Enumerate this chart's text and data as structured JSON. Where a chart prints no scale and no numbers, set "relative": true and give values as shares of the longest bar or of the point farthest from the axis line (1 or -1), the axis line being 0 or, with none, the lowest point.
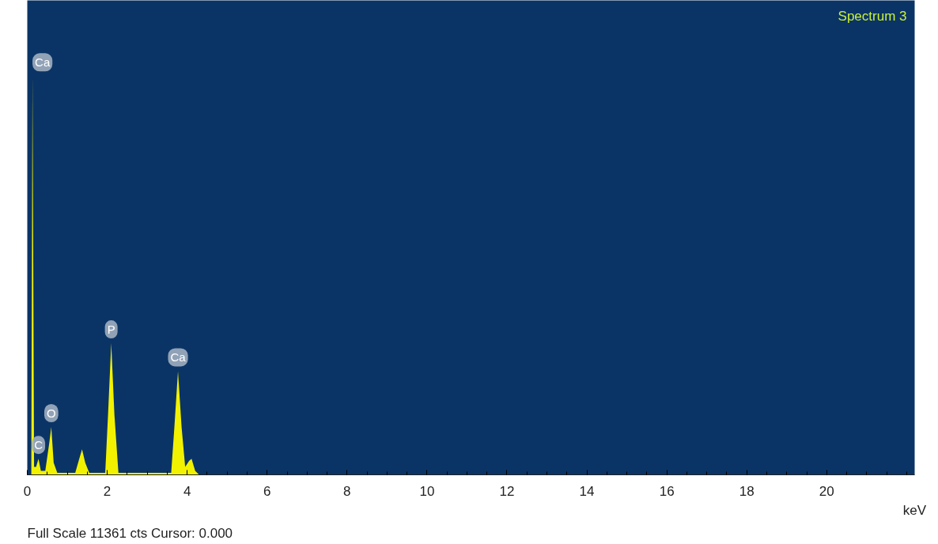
{
  "chart_data": {
    "type": "area",
    "title": "Spectrum 3",
    "xlabel": "keV",
    "relative": true,
    "x": [
      0.0,
      0.1,
      0.13,
      0.17,
      0.22,
      0.28,
      0.34,
      0.45,
      0.55,
      0.6,
      0.66,
      0.75,
      1.2,
      1.3,
      1.37,
      1.45,
      1.55,
      1.95,
      2.02,
      2.1,
      2.18,
      2.28,
      3.6,
      3.68,
      3.77,
      3.86,
      3.95,
      4.05,
      4.11,
      4.2,
      4.3,
      22.2
    ],
    "series": [
      {
        "color": "#f2f200",
        "values": [
          0,
          0,
          1,
          0.02,
          0.02,
          0.04,
          0.01,
          0.01,
          0.08,
          0.12,
          0.03,
          0.005,
          0.005,
          0.04,
          0.064,
          0.03,
          0.005,
          0.005,
          0.15,
          0.33,
          0.15,
          0.005,
          0.005,
          0.12,
          0.26,
          0.12,
          0.02,
          0.035,
          0.04,
          0.01,
          0,
          0
        ]
      }
    ],
    "xlim": [
      0,
      22.2
    ],
    "xticks": [
      0,
      2,
      4,
      6,
      8,
      10,
      12,
      14,
      16,
      18,
      20
    ],
    "annotations": [
      {
        "text": "Ca",
        "x": 0.13,
        "y": 1
      },
      {
        "text": "C",
        "x": 0.28,
        "y": 0.04
      },
      {
        "text": "O",
        "x": 0.6,
        "y": 0.12
      },
      {
        "text": "P",
        "x": 2.1,
        "y": 0.33
      },
      {
        "text": "Ca",
        "x": 3.77,
        "y": 0.26
      },
      "Full Scale 11361 cts Cursor: 0.000"
    ]
  }
}
